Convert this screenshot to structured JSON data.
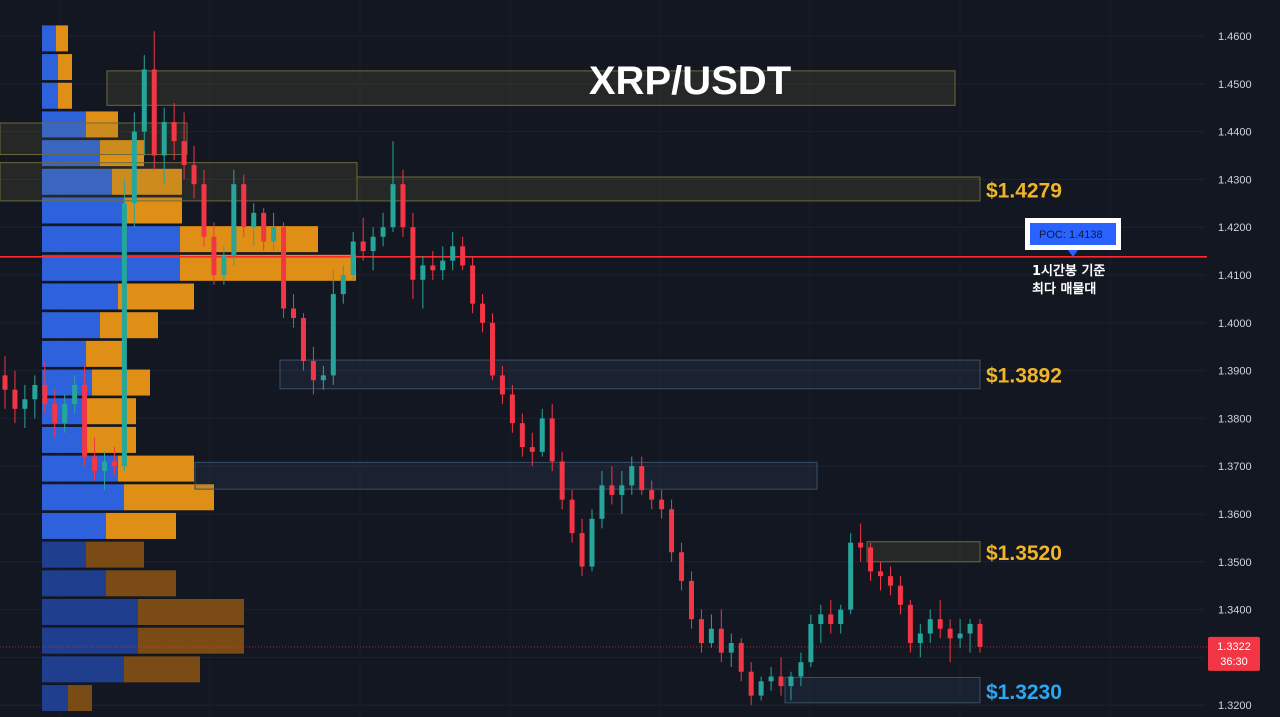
{
  "chart_data": {
    "type": "candlestick",
    "title": "XRP/USDT",
    "y_axis": {
      "ticks": [
        "1.4600",
        "1.4500",
        "1.4400",
        "1.4300",
        "1.4200",
        "1.4100",
        "1.4000",
        "1.3900",
        "1.3800",
        "1.3700",
        "1.3600",
        "1.3500",
        "1.3400",
        "1.3300",
        "1.3200"
      ],
      "range": [
        1.3168,
        1.4682
      ]
    },
    "current_price": {
      "value": "1.3322",
      "countdown": "36:30",
      "price": 1.3322
    },
    "poc": {
      "label": "POC",
      "value": "1.4138",
      "price": 1.4138,
      "note_line1": "1시간봉 기준",
      "note_line2": "최다 매물대"
    },
    "levels": [
      {
        "label": "$1.4279",
        "price": 1.4279,
        "color": "#f0b429"
      },
      {
        "label": "$1.3892",
        "price": 1.3892,
        "color": "#f0b429"
      },
      {
        "label": "$1.3520",
        "price": 1.352,
        "color": "#f0b429"
      },
      {
        "label": "$1.3230",
        "price": 1.323,
        "color": "#2da8f0"
      }
    ],
    "zones": [
      {
        "from": 107,
        "to": 955,
        "high": 1.4527,
        "low": 1.4455,
        "tone": "yellow"
      },
      {
        "from": 0,
        "to": 187,
        "high": 1.4418,
        "low": 1.4352,
        "tone": "yellow"
      },
      {
        "from": 0,
        "to": 357,
        "high": 1.4335,
        "low": 1.4255,
        "tone": "yellow"
      },
      {
        "from": 357,
        "to": 980,
        "high": 1.4305,
        "low": 1.4255,
        "tone": "yellow"
      },
      {
        "from": 280,
        "to": 980,
        "high": 1.3922,
        "low": 1.3862,
        "tone": "blue"
      },
      {
        "from": 195,
        "to": 817,
        "high": 1.3708,
        "low": 1.3652,
        "tone": "blue"
      },
      {
        "from": 867,
        "to": 980,
        "high": 1.3542,
        "low": 1.35,
        "tone": "yellow"
      },
      {
        "from": 785,
        "to": 980,
        "high": 1.3258,
        "low": 1.3205,
        "tone": "blue"
      }
    ],
    "volume_profile": [
      {
        "price": 1.4595,
        "buy": 14,
        "sell": 12
      },
      {
        "price": 1.4535,
        "buy": 16,
        "sell": 14
      },
      {
        "price": 1.4475,
        "buy": 16,
        "sell": 14
      },
      {
        "price": 1.4415,
        "buy": 44,
        "sell": 32
      },
      {
        "price": 1.4355,
        "buy": 58,
        "sell": 44
      },
      {
        "price": 1.4295,
        "buy": 70,
        "sell": 70
      },
      {
        "price": 1.4235,
        "buy": 82,
        "sell": 58
      },
      {
        "price": 1.4175,
        "buy": 138,
        "sell": 138
      },
      {
        "price": 1.4115,
        "buy": 138,
        "sell": 176
      },
      {
        "price": 1.4055,
        "buy": 76,
        "sell": 76
      },
      {
        "price": 1.3995,
        "buy": 58,
        "sell": 58
      },
      {
        "price": 1.3935,
        "buy": 44,
        "sell": 40
      },
      {
        "price": 1.3875,
        "buy": 50,
        "sell": 58
      },
      {
        "price": 1.3815,
        "buy": 44,
        "sell": 50
      },
      {
        "price": 1.3755,
        "buy": 44,
        "sell": 50
      },
      {
        "price": 1.3695,
        "buy": 76,
        "sell": 76
      },
      {
        "price": 1.3635,
        "buy": 82,
        "sell": 90
      },
      {
        "price": 1.3575,
        "buy": 64,
        "sell": 70
      },
      {
        "price": 1.3515,
        "buy": 44,
        "sell": 58
      },
      {
        "price": 1.3455,
        "buy": 64,
        "sell": 70
      },
      {
        "price": 1.3395,
        "buy": 96,
        "sell": 106
      },
      {
        "price": 1.3335,
        "buy": 96,
        "sell": 106
      },
      {
        "price": 1.3275,
        "buy": 82,
        "sell": 76
      },
      {
        "price": 1.3215,
        "buy": 26,
        "sell": 24
      }
    ],
    "candles": [
      [
        1.389,
        1.393,
        1.382,
        1.386
      ],
      [
        1.386,
        1.39,
        1.379,
        1.382
      ],
      [
        1.382,
        1.387,
        1.378,
        1.384
      ],
      [
        1.384,
        1.389,
        1.38,
        1.387
      ],
      [
        1.387,
        1.392,
        1.381,
        1.383
      ],
      [
        1.383,
        1.386,
        1.376,
        1.379
      ],
      [
        1.379,
        1.385,
        1.377,
        1.383
      ],
      [
        1.383,
        1.389,
        1.381,
        1.387
      ],
      [
        1.387,
        1.391,
        1.37,
        1.372
      ],
      [
        1.372,
        1.376,
        1.367,
        1.369
      ],
      [
        1.369,
        1.373,
        1.365,
        1.371
      ],
      [
        1.371,
        1.374,
        1.368,
        1.37
      ],
      [
        1.37,
        1.43,
        1.369,
        1.425
      ],
      [
        1.425,
        1.444,
        1.42,
        1.44
      ],
      [
        1.44,
        1.456,
        1.435,
        1.453
      ],
      [
        1.453,
        1.461,
        1.432,
        1.435
      ],
      [
        1.435,
        1.445,
        1.429,
        1.442
      ],
      [
        1.442,
        1.446,
        1.434,
        1.438
      ],
      [
        1.438,
        1.444,
        1.43,
        1.433
      ],
      [
        1.433,
        1.437,
        1.426,
        1.429
      ],
      [
        1.429,
        1.432,
        1.416,
        1.418
      ],
      [
        1.418,
        1.421,
        1.408,
        1.41
      ],
      [
        1.41,
        1.416,
        1.408,
        1.414
      ],
      [
        1.414,
        1.432,
        1.412,
        1.429
      ],
      [
        1.429,
        1.431,
        1.418,
        1.42
      ],
      [
        1.42,
        1.425,
        1.416,
        1.423
      ],
      [
        1.423,
        1.424,
        1.415,
        1.417
      ],
      [
        1.417,
        1.423,
        1.415,
        1.42
      ],
      [
        1.42,
        1.421,
        1.401,
        1.403
      ],
      [
        1.403,
        1.406,
        1.399,
        1.401
      ],
      [
        1.401,
        1.402,
        1.39,
        1.392
      ],
      [
        1.392,
        1.395,
        1.385,
        1.388
      ],
      [
        1.388,
        1.391,
        1.386,
        1.389
      ],
      [
        1.389,
        1.411,
        1.387,
        1.406
      ],
      [
        1.406,
        1.412,
        1.404,
        1.41
      ],
      [
        1.41,
        1.419,
        1.409,
        1.417
      ],
      [
        1.417,
        1.422,
        1.413,
        1.415
      ],
      [
        1.415,
        1.42,
        1.411,
        1.418
      ],
      [
        1.418,
        1.423,
        1.416,
        1.42
      ],
      [
        1.42,
        1.438,
        1.419,
        1.429
      ],
      [
        1.429,
        1.432,
        1.418,
        1.42
      ],
      [
        1.42,
        1.423,
        1.405,
        1.409
      ],
      [
        1.409,
        1.414,
        1.403,
        1.412
      ],
      [
        1.412,
        1.415,
        1.409,
        1.411
      ],
      [
        1.411,
        1.416,
        1.409,
        1.413
      ],
      [
        1.413,
        1.419,
        1.411,
        1.416
      ],
      [
        1.416,
        1.418,
        1.411,
        1.412
      ],
      [
        1.412,
        1.414,
        1.402,
        1.404
      ],
      [
        1.404,
        1.406,
        1.398,
        1.4
      ],
      [
        1.4,
        1.402,
        1.388,
        1.389
      ],
      [
        1.389,
        1.391,
        1.383,
        1.385
      ],
      [
        1.385,
        1.387,
        1.377,
        1.379
      ],
      [
        1.379,
        1.381,
        1.372,
        1.374
      ],
      [
        1.374,
        1.377,
        1.37,
        1.373
      ],
      [
        1.373,
        1.382,
        1.372,
        1.38
      ],
      [
        1.38,
        1.383,
        1.369,
        1.371
      ],
      [
        1.371,
        1.373,
        1.361,
        1.363
      ],
      [
        1.363,
        1.365,
        1.354,
        1.356
      ],
      [
        1.356,
        1.359,
        1.347,
        1.349
      ],
      [
        1.349,
        1.361,
        1.348,
        1.359
      ],
      [
        1.359,
        1.369,
        1.357,
        1.366
      ],
      [
        1.366,
        1.37,
        1.362,
        1.364
      ],
      [
        1.364,
        1.369,
        1.36,
        1.366
      ],
      [
        1.366,
        1.372,
        1.364,
        1.37
      ],
      [
        1.37,
        1.372,
        1.364,
        1.365
      ],
      [
        1.365,
        1.367,
        1.361,
        1.363
      ],
      [
        1.363,
        1.365,
        1.359,
        1.361
      ],
      [
        1.361,
        1.363,
        1.35,
        1.352
      ],
      [
        1.352,
        1.354,
        1.344,
        1.346
      ],
      [
        1.346,
        1.348,
        1.336,
        1.338
      ],
      [
        1.338,
        1.34,
        1.331,
        1.333
      ],
      [
        1.333,
        1.339,
        1.332,
        1.336
      ],
      [
        1.336,
        1.34,
        1.329,
        1.331
      ],
      [
        1.331,
        1.335,
        1.328,
        1.333
      ],
      [
        1.333,
        1.334,
        1.325,
        1.327
      ],
      [
        1.327,
        1.329,
        1.32,
        1.322
      ],
      [
        1.322,
        1.326,
        1.321,
        1.325
      ],
      [
        1.325,
        1.328,
        1.323,
        1.326
      ],
      [
        1.326,
        1.33,
        1.322,
        1.324
      ],
      [
        1.324,
        1.327,
        1.321,
        1.326
      ],
      [
        1.326,
        1.331,
        1.324,
        1.329
      ],
      [
        1.329,
        1.339,
        1.328,
        1.337
      ],
      [
        1.337,
        1.341,
        1.333,
        1.339
      ],
      [
        1.339,
        1.342,
        1.335,
        1.337
      ],
      [
        1.337,
        1.341,
        1.335,
        1.34
      ],
      [
        1.34,
        1.356,
        1.339,
        1.354
      ],
      [
        1.354,
        1.358,
        1.35,
        1.353
      ],
      [
        1.353,
        1.354,
        1.346,
        1.348
      ],
      [
        1.348,
        1.35,
        1.344,
        1.347
      ],
      [
        1.347,
        1.349,
        1.343,
        1.345
      ],
      [
        1.345,
        1.347,
        1.339,
        1.341
      ],
      [
        1.341,
        1.342,
        1.331,
        1.333
      ],
      [
        1.333,
        1.337,
        1.33,
        1.335
      ],
      [
        1.335,
        1.34,
        1.333,
        1.338
      ],
      [
        1.338,
        1.342,
        1.334,
        1.336
      ],
      [
        1.336,
        1.338,
        1.329,
        1.334
      ],
      [
        1.334,
        1.338,
        1.332,
        1.335
      ],
      [
        1.335,
        1.338,
        1.331,
        1.337
      ],
      [
        1.337,
        1.338,
        1.331,
        1.3322
      ]
    ]
  }
}
